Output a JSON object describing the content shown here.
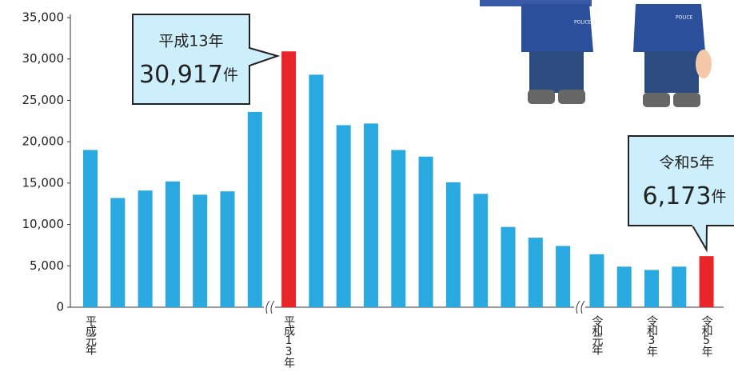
{
  "chart_data": {
    "type": "bar",
    "categories": [
      "平成元年",
      null,
      null,
      null,
      null,
      null,
      null,
      "平成13年",
      null,
      null,
      null,
      null,
      null,
      null,
      null,
      null,
      null,
      null,
      "令和元年",
      null,
      "令和3年",
      null,
      "令和5年"
    ],
    "values": [
      19000,
      13200,
      14100,
      15200,
      13600,
      14000,
      23600,
      30917,
      28100,
      22000,
      22200,
      19000,
      18200,
      15100,
      13700,
      9700,
      8400,
      7400,
      6400,
      4900,
      4500,
      4900,
      6173
    ],
    "value_labels": [
      null,
      null,
      null,
      null,
      null,
      null,
      null,
      "30,917",
      null,
      null,
      null,
      null,
      null,
      null,
      null,
      null,
      null,
      null,
      null,
      null,
      null,
      null,
      "6,173"
    ],
    "callout_titles": [
      null,
      null,
      null,
      null,
      null,
      null,
      null,
      "平成13年",
      null,
      null,
      null,
      null,
      null,
      null,
      null,
      null,
      null,
      null,
      null,
      null,
      null,
      null,
      "令和5年"
    ],
    "unit": "件",
    "colors": [
      "#29a9e0",
      "#29a9e0",
      "#29a9e0",
      "#29a9e0",
      "#29a9e0",
      "#29a9e0",
      "#29a9e0",
      "#e8262a",
      "#29a9e0",
      "#29a9e0",
      "#29a9e0",
      "#29a9e0",
      "#29a9e0",
      "#29a9e0",
      "#29a9e0",
      "#29a9e0",
      "#29a9e0",
      "#29a9e0",
      "#29a9e0",
      "#29a9e0",
      "#29a9e0",
      "#29a9e0",
      "#e8262a"
    ],
    "ylim": [
      0,
      35000
    ],
    "yticks": [
      0,
      {
        "value": 5000,
        "label": "5,000"
      },
      {
        "value": 10000,
        "label": "10,000"
      },
      {
        "value": 15000,
        "label": "15,000"
      },
      {
        "value": 20000,
        "label": "20,000"
      },
      {
        "value": 25000,
        "label": "25,000"
      },
      {
        "value": 30000,
        "label": "30,000"
      },
      {
        "value": 35000,
        "label": "35,000"
      }
    ],
    "grid": false
  }
}
